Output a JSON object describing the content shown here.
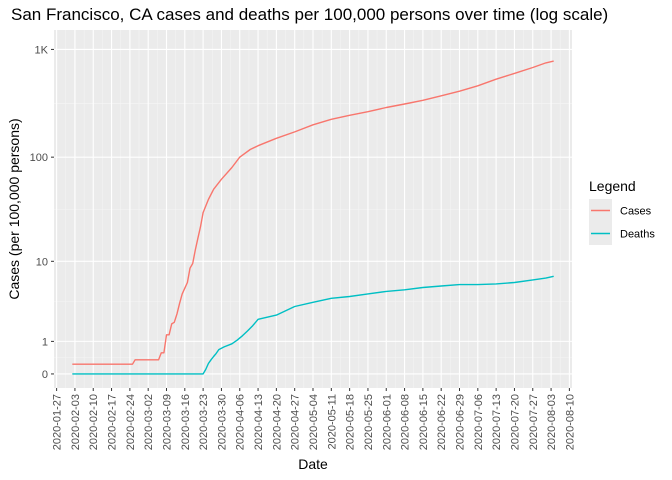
{
  "chart_data": {
    "type": "line",
    "title": "San Francisco, CA cases and deaths per 100,000 persons over time (log scale)",
    "xlabel": "Date",
    "ylabel": "Cases (per 100,000 persons)",
    "y_scale": "log10(1+x)",
    "y_ticks": [
      0,
      1,
      10,
      100,
      1000
    ],
    "y_tick_labels": [
      "0",
      "1",
      "10",
      "100",
      "1K"
    ],
    "xlim": [
      "2020-01-26",
      "2020-08-11"
    ],
    "x_tick_labels": [
      "2020-01-27",
      "2020-02-03",
      "2020-02-10",
      "2020-02-17",
      "2020-02-24",
      "2020-03-02",
      "2020-03-09",
      "2020-03-16",
      "2020-03-23",
      "2020-03-30",
      "2020-04-06",
      "2020-04-13",
      "2020-04-20",
      "2020-04-27",
      "2020-05-04",
      "2020-05-11",
      "2020-05-18",
      "2020-05-25",
      "2020-06-01",
      "2020-06-08",
      "2020-06-15",
      "2020-06-22",
      "2020-06-29",
      "2020-07-06",
      "2020-07-13",
      "2020-07-20",
      "2020-07-27",
      "2020-08-03",
      "2020-08-10"
    ],
    "grid": true,
    "legend": {
      "title": "Legend",
      "position": "right"
    },
    "series": [
      {
        "name": "Cases",
        "color": "#f8766d",
        "points": [
          [
            "2020-02-02",
            0.23
          ],
          [
            "2020-02-25",
            0.23
          ],
          [
            "2020-02-26",
            0.35
          ],
          [
            "2020-03-06",
            0.35
          ],
          [
            "2020-03-07",
            0.57
          ],
          [
            "2020-03-08",
            0.57
          ],
          [
            "2020-03-09",
            1.3
          ],
          [
            "2020-03-10",
            1.3
          ],
          [
            "2020-03-11",
            1.9
          ],
          [
            "2020-03-12",
            2.0
          ],
          [
            "2020-03-13",
            2.6
          ],
          [
            "2020-03-14",
            3.5
          ],
          [
            "2020-03-15",
            4.5
          ],
          [
            "2020-03-16",
            5.2
          ],
          [
            "2020-03-17",
            6.0
          ],
          [
            "2020-03-18",
            8.5
          ],
          [
            "2020-03-19",
            9.5
          ],
          [
            "2020-03-20",
            13
          ],
          [
            "2020-03-21",
            17
          ],
          [
            "2020-03-22",
            22
          ],
          [
            "2020-03-23",
            30
          ],
          [
            "2020-03-25",
            40
          ],
          [
            "2020-03-27",
            50
          ],
          [
            "2020-03-30",
            62
          ],
          [
            "2020-04-03",
            80
          ],
          [
            "2020-04-06",
            100
          ],
          [
            "2020-04-10",
            118
          ],
          [
            "2020-04-13",
            128
          ],
          [
            "2020-04-20",
            150
          ],
          [
            "2020-04-27",
            172
          ],
          [
            "2020-05-04",
            200
          ],
          [
            "2020-05-11",
            225
          ],
          [
            "2020-05-18",
            245
          ],
          [
            "2020-05-25",
            265
          ],
          [
            "2020-06-01",
            290
          ],
          [
            "2020-06-08",
            312
          ],
          [
            "2020-06-15",
            338
          ],
          [
            "2020-06-22",
            372
          ],
          [
            "2020-06-29",
            410
          ],
          [
            "2020-07-06",
            460
          ],
          [
            "2020-07-13",
            530
          ],
          [
            "2020-07-20",
            600
          ],
          [
            "2020-07-27",
            680
          ],
          [
            "2020-08-01",
            750
          ],
          [
            "2020-08-04",
            780
          ]
        ]
      },
      {
        "name": "Deaths",
        "color": "#00bfc4",
        "points": [
          [
            "2020-02-02",
            0
          ],
          [
            "2020-03-23",
            0
          ],
          [
            "2020-03-24",
            0.1
          ],
          [
            "2020-03-25",
            0.25
          ],
          [
            "2020-03-26",
            0.35
          ],
          [
            "2020-03-27",
            0.45
          ],
          [
            "2020-03-28",
            0.55
          ],
          [
            "2020-03-29",
            0.68
          ],
          [
            "2020-03-31",
            0.78
          ],
          [
            "2020-04-03",
            0.9
          ],
          [
            "2020-04-05",
            1.05
          ],
          [
            "2020-04-07",
            1.25
          ],
          [
            "2020-04-09",
            1.5
          ],
          [
            "2020-04-11",
            1.8
          ],
          [
            "2020-04-13",
            2.2
          ],
          [
            "2020-04-20",
            2.5
          ],
          [
            "2020-04-27",
            3.2
          ],
          [
            "2020-05-04",
            3.6
          ],
          [
            "2020-05-11",
            4.0
          ],
          [
            "2020-05-18",
            4.2
          ],
          [
            "2020-05-25",
            4.5
          ],
          [
            "2020-06-01",
            4.8
          ],
          [
            "2020-06-08",
            5.0
          ],
          [
            "2020-06-15",
            5.3
          ],
          [
            "2020-06-22",
            5.5
          ],
          [
            "2020-06-29",
            5.7
          ],
          [
            "2020-07-06",
            5.7
          ],
          [
            "2020-07-13",
            5.8
          ],
          [
            "2020-07-20",
            6.0
          ],
          [
            "2020-07-27",
            6.4
          ],
          [
            "2020-08-01",
            6.7
          ],
          [
            "2020-08-04",
            7.0
          ]
        ]
      }
    ]
  }
}
